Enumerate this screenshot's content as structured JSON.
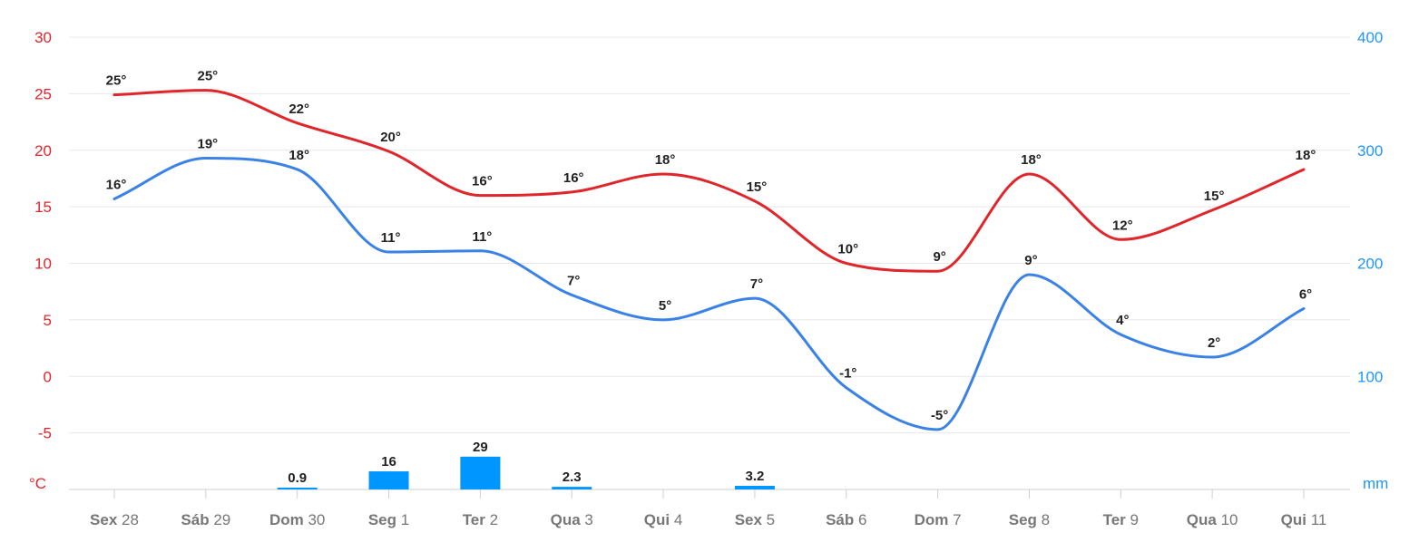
{
  "chart_data": {
    "type": "line",
    "categories": [
      {
        "day": "Sex",
        "num": "28"
      },
      {
        "day": "Sáb",
        "num": "29"
      },
      {
        "day": "Dom",
        "num": "30"
      },
      {
        "day": "Seg",
        "num": "1"
      },
      {
        "day": "Ter",
        "num": "2"
      },
      {
        "day": "Qua",
        "num": "3"
      },
      {
        "day": "Qui",
        "num": "4"
      },
      {
        "day": "Sex",
        "num": "5"
      },
      {
        "day": "Sáb",
        "num": "6"
      },
      {
        "day": "Dom",
        "num": "7"
      },
      {
        "day": "Seg",
        "num": "8"
      },
      {
        "day": "Ter",
        "num": "9"
      },
      {
        "day": "Qua",
        "num": "10"
      },
      {
        "day": "Qui",
        "num": "11"
      }
    ],
    "y_left": {
      "unit": "°C",
      "ylim": [
        -10,
        30
      ],
      "ticks": [
        30,
        25,
        20,
        15,
        10,
        5,
        0,
        -5
      ],
      "color": "#e0262b"
    },
    "y_right": {
      "unit": "mm",
      "ylim": [
        0,
        400
      ],
      "ticks": [
        400,
        300,
        200,
        100
      ],
      "color": "#2196f3"
    },
    "series": [
      {
        "kind": "line",
        "axis": "left",
        "color": "#e0262b",
        "values": [
          24.9,
          25.3,
          22.4,
          19.9,
          16.0,
          16.3,
          17.9,
          15.5,
          10.0,
          9.3,
          17.9,
          12.1,
          14.7,
          18.3
        ],
        "labels": [
          "25°",
          "25°",
          "22°",
          "20°",
          "16°",
          "16°",
          "18°",
          "15°",
          "10°",
          "9°",
          "18°",
          "12°",
          "15°",
          "18°"
        ]
      },
      {
        "kind": "line",
        "axis": "left",
        "color": "#3b82e6",
        "values": [
          15.7,
          19.3,
          18.3,
          11.0,
          11.1,
          7.2,
          5.0,
          6.9,
          -1.0,
          -4.7,
          9.0,
          3.7,
          1.7,
          6.0
        ],
        "labels": [
          "16°",
          "19°",
          "18°",
          "11°",
          "11°",
          "7°",
          "5°",
          "7°",
          "-1°",
          "-5°",
          "9°",
          "4°",
          "2°",
          "6°"
        ]
      },
      {
        "kind": "bar",
        "axis": "right",
        "color": "#0096ff",
        "values": [
          0,
          0,
          0.9,
          16,
          29,
          2.3,
          0,
          3.2,
          0,
          0,
          0,
          0,
          0,
          0
        ],
        "labels": [
          "",
          "",
          "0.9",
          "16",
          "29",
          "2.3",
          "",
          "3.2",
          "",
          "",
          "",
          "",
          "",
          ""
        ]
      }
    ],
    "grid": true,
    "legend": "none"
  }
}
